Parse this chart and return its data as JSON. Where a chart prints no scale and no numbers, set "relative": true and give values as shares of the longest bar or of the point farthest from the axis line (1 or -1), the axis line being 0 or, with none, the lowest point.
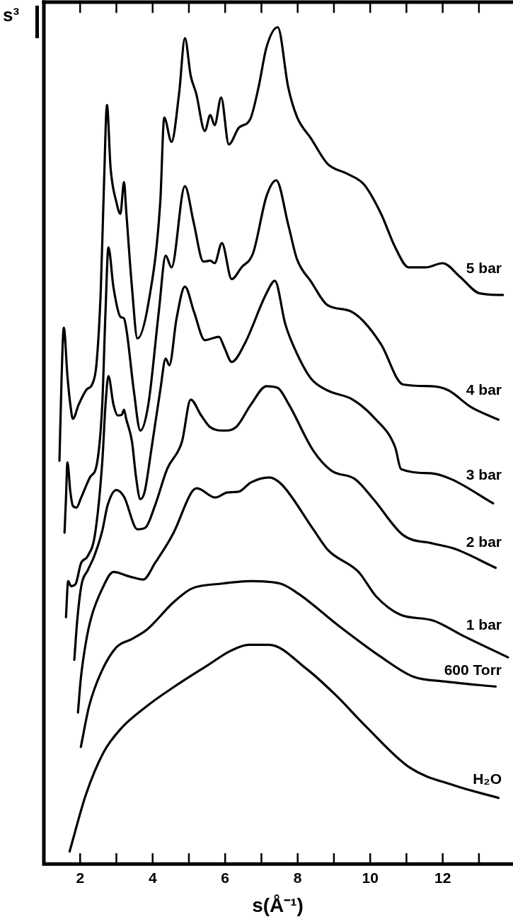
{
  "chart_data": {
    "type": "line",
    "relative": true,
    "xlabel": "s(Å⁻¹)",
    "ylabel": "s³",
    "xlim": [
      1,
      13.9
    ],
    "xticks": [
      {
        "value": 2,
        "label": "2"
      },
      {
        "value": 3,
        "label": null
      },
      {
        "value": 4,
        "label": "4"
      },
      {
        "value": 5,
        "label": null
      },
      {
        "value": 6,
        "label": "6"
      },
      {
        "value": 7,
        "label": null
      },
      {
        "value": 8,
        "label": "8"
      },
      {
        "value": 9,
        "label": null
      },
      {
        "value": 10,
        "label": "10"
      },
      {
        "value": 11,
        "label": null
      },
      {
        "value": 12,
        "label": "12"
      },
      {
        "value": 13,
        "label": null
      }
    ],
    "grid": false,
    "legend": false,
    "marker": "none",
    "line_style": "solid",
    "series": [
      {
        "name": "5 bar",
        "color": "#000000",
        "x": [
          1.43,
          1.49,
          1.55,
          1.65,
          1.73,
          1.8,
          1.96,
          2.18,
          2.33,
          2.45,
          2.57,
          2.66,
          2.74,
          2.84,
          3.0,
          3.11,
          3.21,
          3.27,
          3.43,
          3.58,
          3.89,
          4.21,
          4.32,
          4.52,
          4.73,
          4.89,
          5.05,
          5.2,
          5.44,
          5.59,
          5.71,
          5.89,
          6.1,
          6.38,
          6.69,
          6.92,
          7.14,
          7.45,
          7.74,
          7.98,
          8.37,
          8.82,
          9.36,
          9.83,
          10.3,
          10.69,
          11.06,
          11.53,
          12.0,
          12.47,
          13.02,
          13.66
        ],
        "values": [
          0.482,
          0.583,
          0.641,
          0.583,
          0.549,
          0.532,
          0.549,
          0.567,
          0.573,
          0.597,
          0.686,
          0.815,
          0.907,
          0.832,
          0.791,
          0.777,
          0.815,
          0.781,
          0.689,
          0.628,
          0.672,
          0.791,
          0.892,
          0.863,
          0.921,
          0.987,
          0.942,
          0.921,
          0.876,
          0.895,
          0.883,
          0.916,
          0.86,
          0.88,
          0.89,
          0.928,
          0.976,
          1.0,
          0.928,
          0.893,
          0.867,
          0.837,
          0.825,
          0.812,
          0.777,
          0.737,
          0.713,
          0.713,
          0.718,
          0.702,
          0.682,
          0.68
        ]
      },
      {
        "name": "4 bar",
        "color": "#000000",
        "x": [
          1.57,
          1.61,
          1.65,
          1.73,
          1.8,
          1.9,
          2.02,
          2.27,
          2.47,
          2.61,
          2.7,
          2.78,
          2.92,
          3.11,
          3.21,
          3.29,
          3.48,
          3.66,
          3.88,
          4.17,
          4.36,
          4.52,
          4.89,
          5.13,
          5.4,
          5.59,
          5.71,
          5.91,
          6.18,
          6.45,
          6.77,
          7.14,
          7.41,
          7.74,
          7.98,
          8.37,
          8.82,
          9.44,
          9.83,
          10.3,
          10.91,
          11.69,
          12.16,
          12.78,
          13.54
        ],
        "values": [
          0.396,
          0.437,
          0.48,
          0.445,
          0.428,
          0.426,
          0.437,
          0.462,
          0.48,
          0.549,
          0.66,
          0.737,
          0.689,
          0.654,
          0.652,
          0.635,
          0.566,
          0.518,
          0.549,
          0.66,
          0.727,
          0.713,
          0.81,
          0.767,
          0.72,
          0.721,
          0.718,
          0.742,
          0.699,
          0.713,
          0.73,
          0.798,
          0.817,
          0.764,
          0.723,
          0.696,
          0.668,
          0.661,
          0.648,
          0.621,
          0.573,
          0.571,
          0.566,
          0.546,
          0.531
        ]
      },
      {
        "name": "3 bar",
        "color": "#000000",
        "x": [
          1.61,
          1.67,
          1.75,
          1.88,
          2.02,
          2.21,
          2.41,
          2.61,
          2.7,
          2.78,
          2.92,
          3.04,
          3.15,
          3.21,
          3.27,
          3.43,
          3.54,
          3.66,
          3.78,
          3.97,
          4.21,
          4.36,
          4.46,
          4.66,
          4.89,
          5.14,
          5.44,
          5.63,
          5.83,
          5.98,
          6.18,
          6.53,
          7.14,
          7.37,
          7.66,
          7.98,
          8.37,
          8.82,
          9.52,
          10.14,
          10.69,
          10.85,
          11.67,
          12.23,
          13.39
        ],
        "values": [
          0.295,
          0.338,
          0.332,
          0.335,
          0.359,
          0.368,
          0.394,
          0.48,
          0.549,
          0.583,
          0.549,
          0.536,
          0.537,
          0.543,
          0.532,
          0.505,
          0.463,
          0.436,
          0.445,
          0.497,
          0.566,
          0.604,
          0.596,
          0.652,
          0.69,
          0.66,
          0.626,
          0.628,
          0.63,
          0.617,
          0.6,
          0.621,
          0.682,
          0.697,
          0.645,
          0.61,
          0.58,
          0.566,
          0.555,
          0.532,
          0.498,
          0.472,
          0.467,
          0.46,
          0.431
        ]
      },
      {
        "name": "2 bar",
        "color": "#000000",
        "x": [
          1.84,
          1.92,
          2.04,
          2.21,
          2.39,
          2.61,
          2.76,
          3.0,
          3.21,
          3.58,
          3.8,
          4.07,
          4.4,
          4.81,
          5.05,
          5.34,
          5.59,
          5.98,
          6.3,
          6.71,
          7.14,
          7.45,
          7.76,
          8.43,
          8.93,
          9.58,
          10.09,
          10.91,
          11.73,
          12.31,
          13.46
        ],
        "values": [
          0.244,
          0.291,
          0.334,
          0.351,
          0.368,
          0.398,
          0.429,
          0.447,
          0.439,
          0.4,
          0.402,
          0.429,
          0.472,
          0.505,
          0.555,
          0.536,
          0.522,
          0.518,
          0.522,
          0.549,
          0.571,
          0.569,
          0.549,
          0.494,
          0.47,
          0.46,
          0.436,
          0.393,
          0.383,
          0.377,
          0.354
        ]
      },
      {
        "name": "1 bar",
        "color": "#000000",
        "x": [
          1.94,
          2.02,
          2.16,
          2.31,
          2.61,
          2.92,
          3.33,
          3.74,
          4.07,
          4.58,
          5.07,
          5.22,
          5.73,
          6.06,
          6.38,
          6.71,
          7.21,
          7.55,
          8.43,
          8.84,
          9.68,
          10.16,
          10.83,
          11.73,
          12.55,
          13.8
        ],
        "values": [
          0.181,
          0.222,
          0.265,
          0.295,
          0.329,
          0.349,
          0.344,
          0.34,
          0.36,
          0.396,
          0.444,
          0.449,
          0.438,
          0.444,
          0.445,
          0.456,
          0.462,
          0.454,
          0.4,
          0.375,
          0.349,
          0.32,
          0.298,
          0.291,
          0.273,
          0.247
        ]
      },
      {
        "name": "600 Torr",
        "color": "#000000",
        "x": [
          2.02,
          2.25,
          2.59,
          3.0,
          3.43,
          3.84,
          4.58,
          5.07,
          5.89,
          6.71,
          7.53,
          8.02,
          9.15,
          10.28,
          11.18,
          12.08,
          13.46
        ],
        "values": [
          0.14,
          0.189,
          0.23,
          0.259,
          0.269,
          0.28,
          0.313,
          0.329,
          0.335,
          0.338,
          0.335,
          0.323,
          0.284,
          0.248,
          0.224,
          0.218,
          0.212
        ]
      },
      {
        "name": "H₂O",
        "color": "#000000",
        "x": [
          1.71,
          2.16,
          2.64,
          3.13,
          3.88,
          4.6,
          5.5,
          6.16,
          6.65,
          7.21,
          8.25,
          9.07,
          9.87,
          11.1,
          12.31,
          13.54
        ],
        "values": [
          0.015,
          0.083,
          0.133,
          0.162,
          0.19,
          0.212,
          0.237,
          0.255,
          0.262,
          0.262,
          0.233,
          0.201,
          0.165,
          0.115,
          0.094,
          0.079
        ]
      }
    ]
  }
}
